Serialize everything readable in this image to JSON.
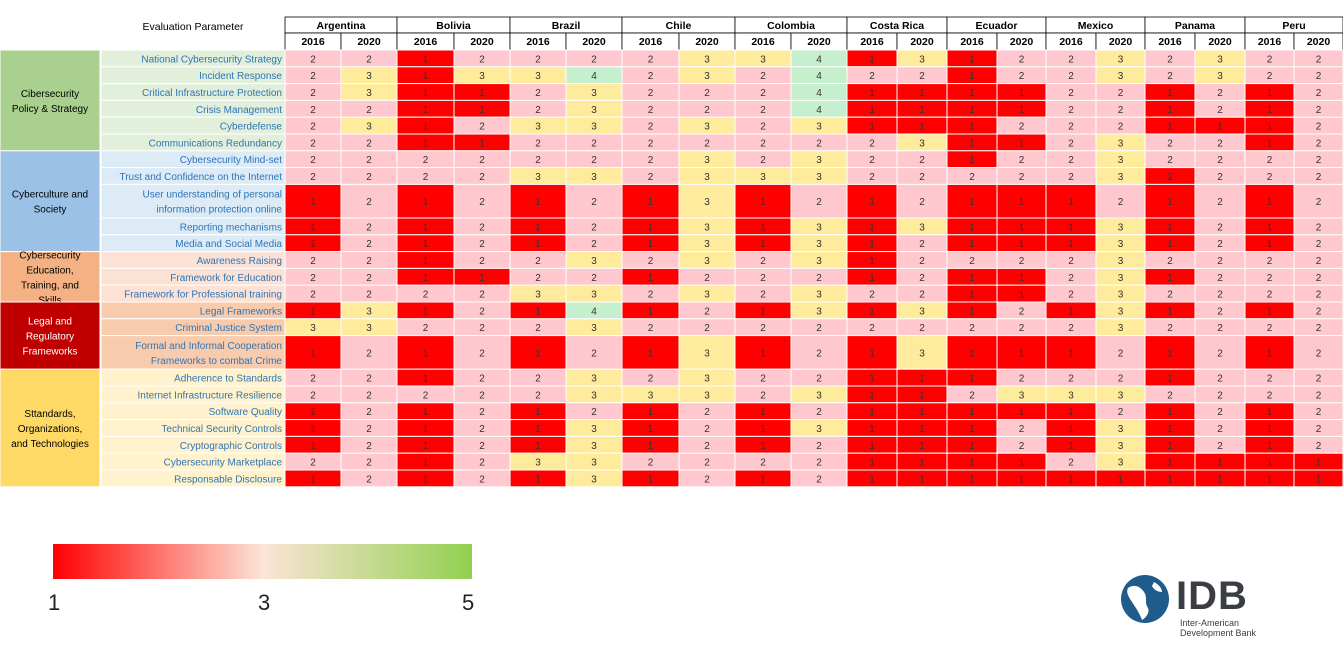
{
  "chart_data": {
    "type": "heatmap",
    "header_label": "Evaluation Parameter",
    "countries": [
      "Argentina",
      "Bolivia",
      "Brazil",
      "Chile",
      "Colombia",
      "Costa Rica",
      "Ecuador",
      "Mexico",
      "Panama",
      "Peru"
    ],
    "years": [
      "2016",
      "2020"
    ],
    "groups": [
      {
        "name": "Cibersecurity Policy & Strategy",
        "color": "#a9d08e",
        "row_color": "#e2efda",
        "rows": [
          {
            "label": "National Cybersecurity Strategy",
            "values": [
              2,
              2,
              1,
              2,
              2,
              2,
              2,
              3,
              3,
              4,
              1,
              3,
              1,
              2,
              2,
              3,
              2,
              3,
              2,
              2
            ]
          },
          {
            "label": "Incident Response",
            "values": [
              2,
              3,
              1,
              3,
              3,
              4,
              2,
              3,
              2,
              4,
              2,
              2,
              1,
              2,
              2,
              3,
              2,
              3,
              2,
              2
            ]
          },
          {
            "label": "Critical Infrastructure Protection",
            "values": [
              2,
              3,
              1,
              1,
              2,
              3,
              2,
              2,
              2,
              4,
              1,
              1,
              1,
              1,
              2,
              2,
              1,
              2,
              1,
              2
            ]
          },
          {
            "label": "Crisis Management",
            "values": [
              2,
              2,
              1,
              1,
              2,
              3,
              2,
              2,
              2,
              4,
              1,
              1,
              1,
              1,
              2,
              2,
              1,
              2,
              1,
              2
            ]
          },
          {
            "label": "Cyberdefense",
            "values": [
              2,
              3,
              1,
              2,
              3,
              3,
              2,
              3,
              2,
              3,
              1,
              1,
              1,
              2,
              2,
              2,
              1,
              1,
              1,
              2
            ]
          },
          {
            "label": "Communications Redundancy",
            "values": [
              2,
              2,
              1,
              1,
              2,
              2,
              2,
              2,
              2,
              2,
              2,
              3,
              1,
              1,
              2,
              3,
              2,
              2,
              1,
              2
            ]
          }
        ]
      },
      {
        "name": "Cyberculture and Society",
        "color": "#9bc2e6",
        "row_color": "#ddebf7",
        "rows": [
          {
            "label": "Cybersecurity Mind-set",
            "values": [
              2,
              2,
              2,
              2,
              2,
              2,
              2,
              3,
              2,
              3,
              2,
              2,
              1,
              2,
              2,
              3,
              2,
              2,
              2,
              2
            ]
          },
          {
            "label": "Trust and Confidence on the Internet",
            "values": [
              2,
              2,
              2,
              2,
              3,
              3,
              2,
              3,
              3,
              3,
              2,
              2,
              2,
              2,
              2,
              3,
              1,
              2,
              2,
              2
            ]
          },
          {
            "label": "User understanding of personal|information protection online",
            "values": [
              1,
              2,
              1,
              2,
              1,
              2,
              1,
              3,
              1,
              2,
              1,
              2,
              1,
              1,
              1,
              2,
              1,
              2,
              1,
              2
            ]
          },
          {
            "label": "Reporting mechanisms",
            "values": [
              1,
              2,
              1,
              2,
              1,
              2,
              1,
              3,
              1,
              3,
              1,
              3,
              1,
              1,
              1,
              3,
              1,
              2,
              1,
              2
            ]
          },
          {
            "label": "Media and Social Media",
            "values": [
              1,
              2,
              1,
              2,
              1,
              2,
              1,
              3,
              1,
              3,
              1,
              2,
              1,
              1,
              1,
              3,
              1,
              2,
              1,
              2
            ]
          }
        ]
      },
      {
        "name": "Cybersecurity Education, Training, and Skills",
        "color": "#f4b183",
        "row_color": "#fbe2d5",
        "rows": [
          {
            "label": "Awareness  Raising",
            "values": [
              2,
              2,
              1,
              2,
              2,
              3,
              2,
              3,
              2,
              3,
              1,
              2,
              2,
              2,
              2,
              3,
              2,
              2,
              2,
              2
            ]
          },
          {
            "label": "Framework for Education",
            "values": [
              2,
              2,
              1,
              1,
              2,
              2,
              1,
              2,
              2,
              2,
              1,
              2,
              1,
              1,
              2,
              3,
              1,
              2,
              2,
              2
            ]
          },
          {
            "label": "Framework for Professional training",
            "values": [
              2,
              2,
              2,
              2,
              3,
              3,
              2,
              3,
              2,
              3,
              2,
              2,
              1,
              1,
              2,
              3,
              2,
              2,
              2,
              2
            ]
          }
        ]
      },
      {
        "name": "Legal and Regulatory Frameworks",
        "color": "#c00000",
        "row_color": "#f8cbad",
        "text_color": "#ffffff",
        "rows": [
          {
            "label": "Legal Frameworks",
            "values": [
              1,
              3,
              1,
              2,
              1,
              4,
              1,
              2,
              1,
              3,
              1,
              3,
              1,
              2,
              1,
              3,
              1,
              2,
              1,
              2
            ]
          },
          {
            "label": "Criminal Justice System",
            "values": [
              3,
              3,
              2,
              2,
              2,
              3,
              2,
              2,
              2,
              2,
              2,
              2,
              2,
              2,
              2,
              3,
              2,
              2,
              2,
              2
            ]
          },
          {
            "label": "Formal and Informal Cooperation|Frameworks to combat Crime",
            "values": [
              1,
              2,
              1,
              2,
              1,
              2,
              1,
              3,
              1,
              2,
              1,
              3,
              1,
              1,
              1,
              2,
              1,
              2,
              1,
              2
            ]
          }
        ]
      },
      {
        "name": "Sttandards, Organizations, and Technologies",
        "color": "#ffd966",
        "row_color": "#fff2cc",
        "rows": [
          {
            "label": "Adherence to Standards",
            "values": [
              2,
              2,
              1,
              2,
              2,
              3,
              2,
              3,
              2,
              2,
              1,
              1,
              1,
              2,
              2,
              2,
              1,
              2,
              2,
              2
            ]
          },
          {
            "label": "Internet Infrastructure Resilience",
            "values": [
              2,
              2,
              2,
              2,
              2,
              3,
              3,
              3,
              2,
              3,
              1,
              1,
              2,
              3,
              3,
              3,
              2,
              2,
              2,
              2
            ]
          },
          {
            "label": "Software Quality",
            "values": [
              1,
              2,
              1,
              2,
              1,
              2,
              1,
              2,
              1,
              2,
              1,
              1,
              1,
              1,
              1,
              2,
              1,
              2,
              1,
              2
            ]
          },
          {
            "label": "Technical Security Controls",
            "values": [
              1,
              2,
              1,
              2,
              1,
              3,
              1,
              2,
              1,
              3,
              1,
              1,
              1,
              2,
              1,
              3,
              1,
              2,
              1,
              2
            ]
          },
          {
            "label": "Cryptographic Controls",
            "values": [
              1,
              2,
              1,
              2,
              1,
              3,
              1,
              2,
              1,
              2,
              1,
              1,
              1,
              2,
              1,
              3,
              1,
              2,
              1,
              2
            ]
          },
          {
            "label": "Cybersecurity Marketplace",
            "values": [
              2,
              2,
              1,
              2,
              3,
              3,
              2,
              2,
              2,
              2,
              1,
              1,
              1,
              1,
              2,
              3,
              1,
              1,
              1,
              1
            ]
          },
          {
            "label": "Responsable Disclosure",
            "values": [
              1,
              2,
              1,
              2,
              1,
              3,
              1,
              2,
              1,
              2,
              1,
              1,
              1,
              1,
              1,
              1,
              1,
              1,
              1,
              1
            ]
          }
        ]
      }
    ],
    "value_colors": {
      "1": "#ff0000",
      "2": "#ffc7ce",
      "3": "#ffeb9c",
      "4": "#c6efce"
    },
    "label_color": "#2e75b6",
    "scale": {
      "min_label": "1",
      "mid_label": "3",
      "max_label": "5",
      "colors": [
        "#ff0000",
        "#fce4d6",
        "#92d050"
      ]
    }
  },
  "brand": {
    "name": "IDB",
    "line1": "Inter-American",
    "line2": "Development Bank",
    "color": "#1f5c8c"
  }
}
